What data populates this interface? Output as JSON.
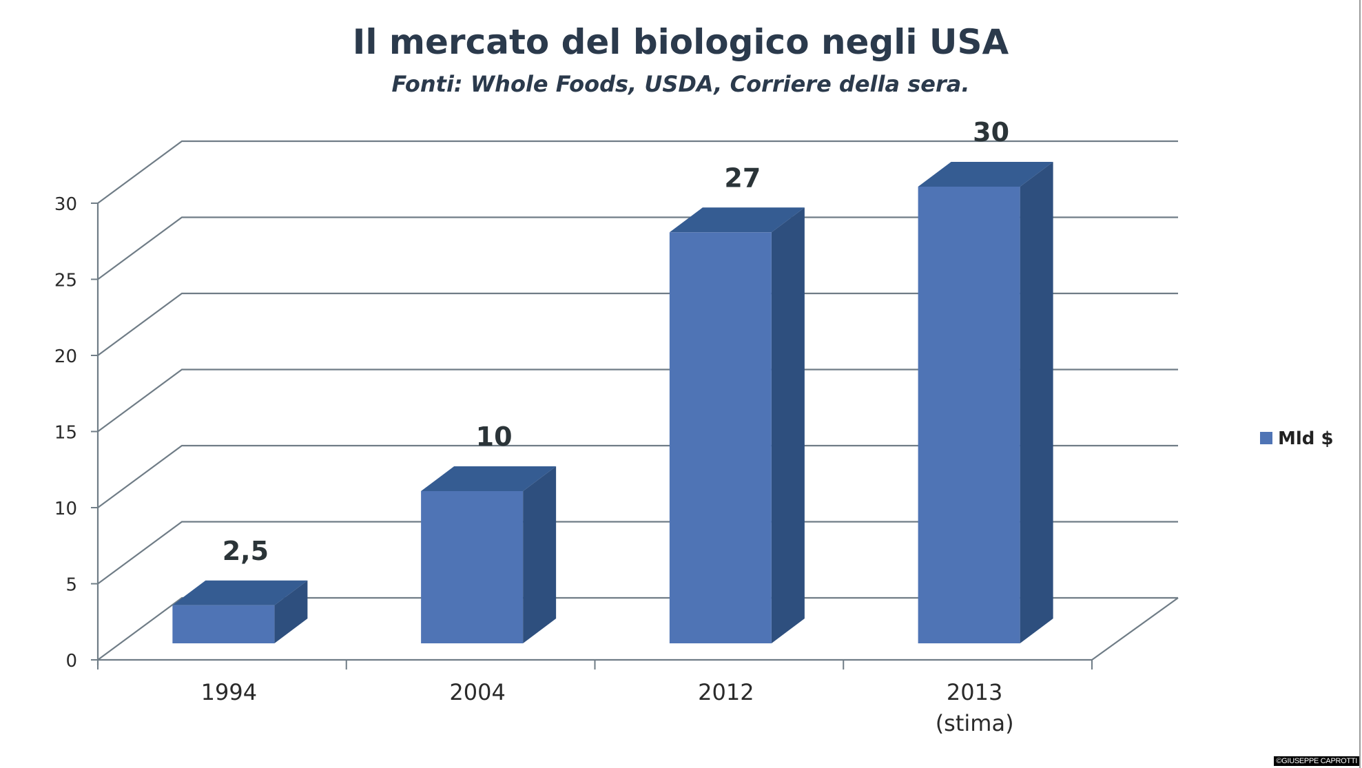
{
  "chart_data": {
    "type": "bar",
    "style": "3d-column",
    "title": "Il mercato del biologico negli USA",
    "subtitle": "Fonti: Whole Foods, USDA, Corriere della sera.",
    "categories": [
      "1994",
      "2004",
      "2012",
      "2013\n(stima)"
    ],
    "category_lines": [
      [
        "1994"
      ],
      [
        "2004"
      ],
      [
        "2012"
      ],
      [
        "2013",
        "(stima)"
      ]
    ],
    "series": [
      {
        "name": "Mld $",
        "values": [
          2.5,
          10,
          27,
          30
        ],
        "color": "#4f74b5"
      }
    ],
    "data_labels": [
      "2,5",
      "10",
      "27",
      "30"
    ],
    "xlabel": "",
    "ylabel": "",
    "ylim": [
      0,
      30
    ],
    "yticks": [
      0,
      5,
      10,
      15,
      20,
      25,
      30
    ],
    "grid": true,
    "legend": {
      "position": "right",
      "entries": [
        "Mld $"
      ]
    }
  },
  "colors": {
    "bar_front": "#4f74b5",
    "bar_side": "#2e4f7e",
    "bar_top": "#355c92",
    "grid": "#6f7c86",
    "text": "#2b3a4c"
  },
  "watermark": "©GIUSEPPE CAPROTTI"
}
